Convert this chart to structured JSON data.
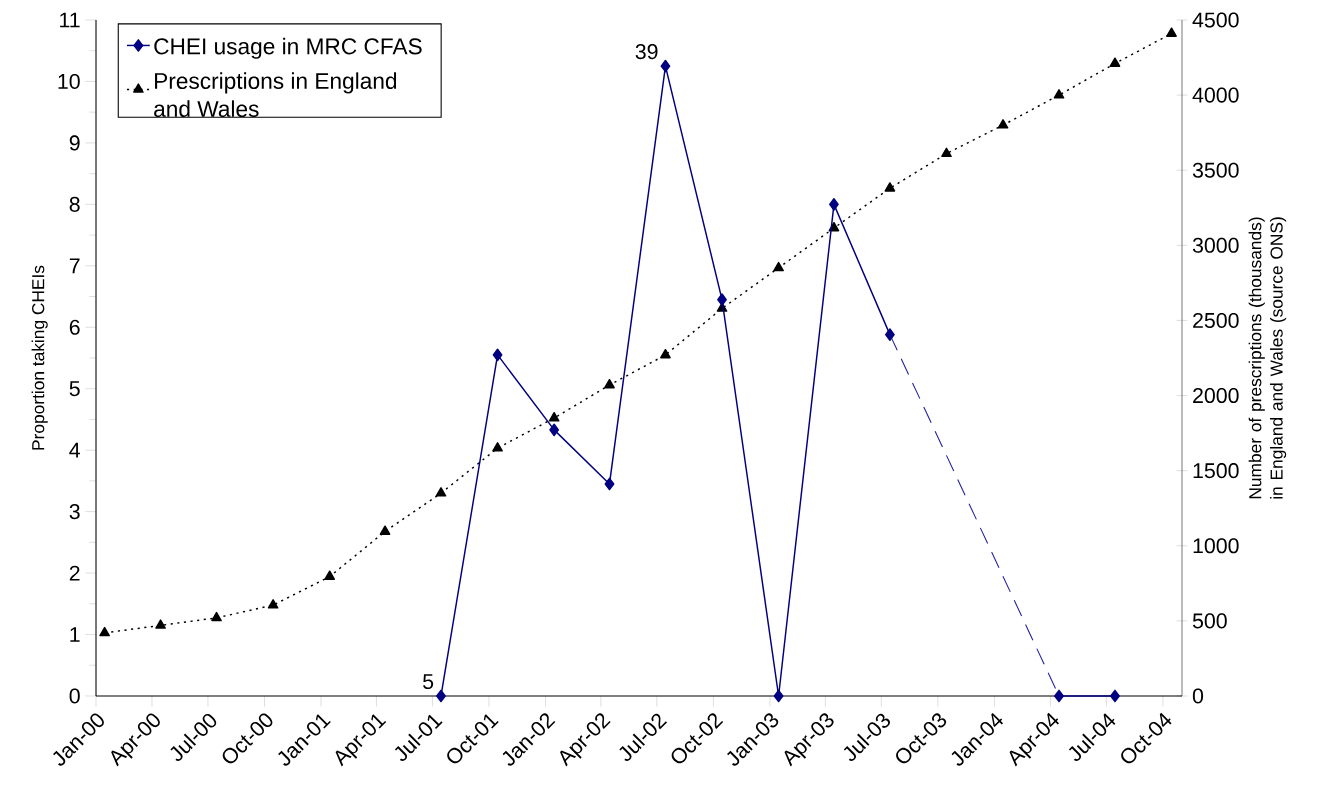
{
  "chart_data": {
    "type": "line",
    "ylabel": "Proportion taking CHEIs",
    "y2label": "Number of prescriptions (thousands) in England and Wales (source ONS)",
    "xlim": [
      "2000-01-01",
      "2004-11-01"
    ],
    "xticks": [
      {
        "value": "2000-01",
        "label": "Jan-00"
      },
      {
        "value": "2000-04",
        "label": "Apr-00"
      },
      {
        "value": "2000-07",
        "label": "Jul-00"
      },
      {
        "value": "2000-10",
        "label": "Oct-00"
      },
      {
        "value": "2001-01",
        "label": "Jan-01"
      },
      {
        "value": "2001-04",
        "label": "Apr-01"
      },
      {
        "value": "2001-07",
        "label": "Jul-01"
      },
      {
        "value": "2001-10",
        "label": "Oct-01"
      },
      {
        "value": "2002-01",
        "label": "Jan-02"
      },
      {
        "value": "2002-04",
        "label": "Apr-02"
      },
      {
        "value": "2002-07",
        "label": "Jul-02"
      },
      {
        "value": "2002-10",
        "label": "Oct-02"
      },
      {
        "value": "2003-01",
        "label": "Jan-03"
      },
      {
        "value": "2003-04",
        "label": "Apr-03"
      },
      {
        "value": "2003-07",
        "label": "Jul-03"
      },
      {
        "value": "2003-10",
        "label": "Oct-03"
      },
      {
        "value": "2004-01",
        "label": "Jan-04"
      },
      {
        "value": "2004-04",
        "label": "Apr-04"
      },
      {
        "value": "2004-07",
        "label": "Jul-04"
      },
      {
        "value": "2004-10",
        "label": "Oct-04"
      }
    ],
    "ylim": [
      0,
      11
    ],
    "yticks": [
      0,
      1,
      2,
      3,
      4,
      5,
      6,
      7,
      8,
      9,
      10,
      11
    ],
    "y2lim": [
      0,
      4500
    ],
    "y2ticks": [
      0,
      500,
      1000,
      1500,
      2000,
      2500,
      3000,
      3500,
      4000,
      4500
    ],
    "legend": "top left",
    "series": [
      {
        "name": "CHEI usage in MRC CFAS",
        "color": "#000080",
        "marker": "diamond",
        "line_style": "solid",
        "x": [
          "2001-07-15",
          "2001-10-15",
          "2002-01-15",
          "2002-04-15",
          "2002-07-15",
          "2002-10-15",
          "2003-01-15",
          "2003-04-15",
          "2003-07-15",
          "2003-10-15",
          "2004-01-15",
          "2004-04-15",
          "2004-07-15"
        ],
        "values": [
          0,
          5.55,
          4.33,
          3.45,
          10.25,
          6.45,
          0,
          8.0,
          5.88,
          null,
          null,
          0,
          0
        ]
      },
      {
        "color": "#2020a0",
        "marker": "none",
        "line_style": "dashed",
        "x": [
          "2003-07-15",
          "2004-04-15"
        ],
        "values": [
          5.88,
          0
        ]
      },
      {
        "name": "Prescriptions in England and Wales",
        "color": "#000000",
        "marker": "triangle",
        "line_style": "dotted",
        "axis": "y2",
        "x": [
          "2000-01-15",
          "2000-04-15",
          "2000-07-15",
          "2000-10-15",
          "2001-01-15",
          "2001-04-15",
          "2001-07-15",
          "2001-10-15",
          "2002-01-15",
          "2002-04-15",
          "2002-07-15",
          "2002-10-15",
          "2003-01-15",
          "2003-04-15",
          "2003-07-15",
          "2003-10-15",
          "2004-01-15",
          "2004-04-15",
          "2004-07-15",
          "2004-10-15"
        ],
        "values": [
          420,
          470,
          520,
          605,
          795,
          1095,
          1350,
          1650,
          1850,
          2070,
          2270,
          2580,
          2850,
          3115,
          3380,
          3610,
          3800,
          4000,
          4210,
          4410
        ]
      }
    ],
    "annotations": [
      {
        "text": "5",
        "x": "2001-07-15",
        "y": 0
      },
      {
        "text": "39",
        "x": "2002-07-15",
        "y": 10.25
      }
    ]
  }
}
